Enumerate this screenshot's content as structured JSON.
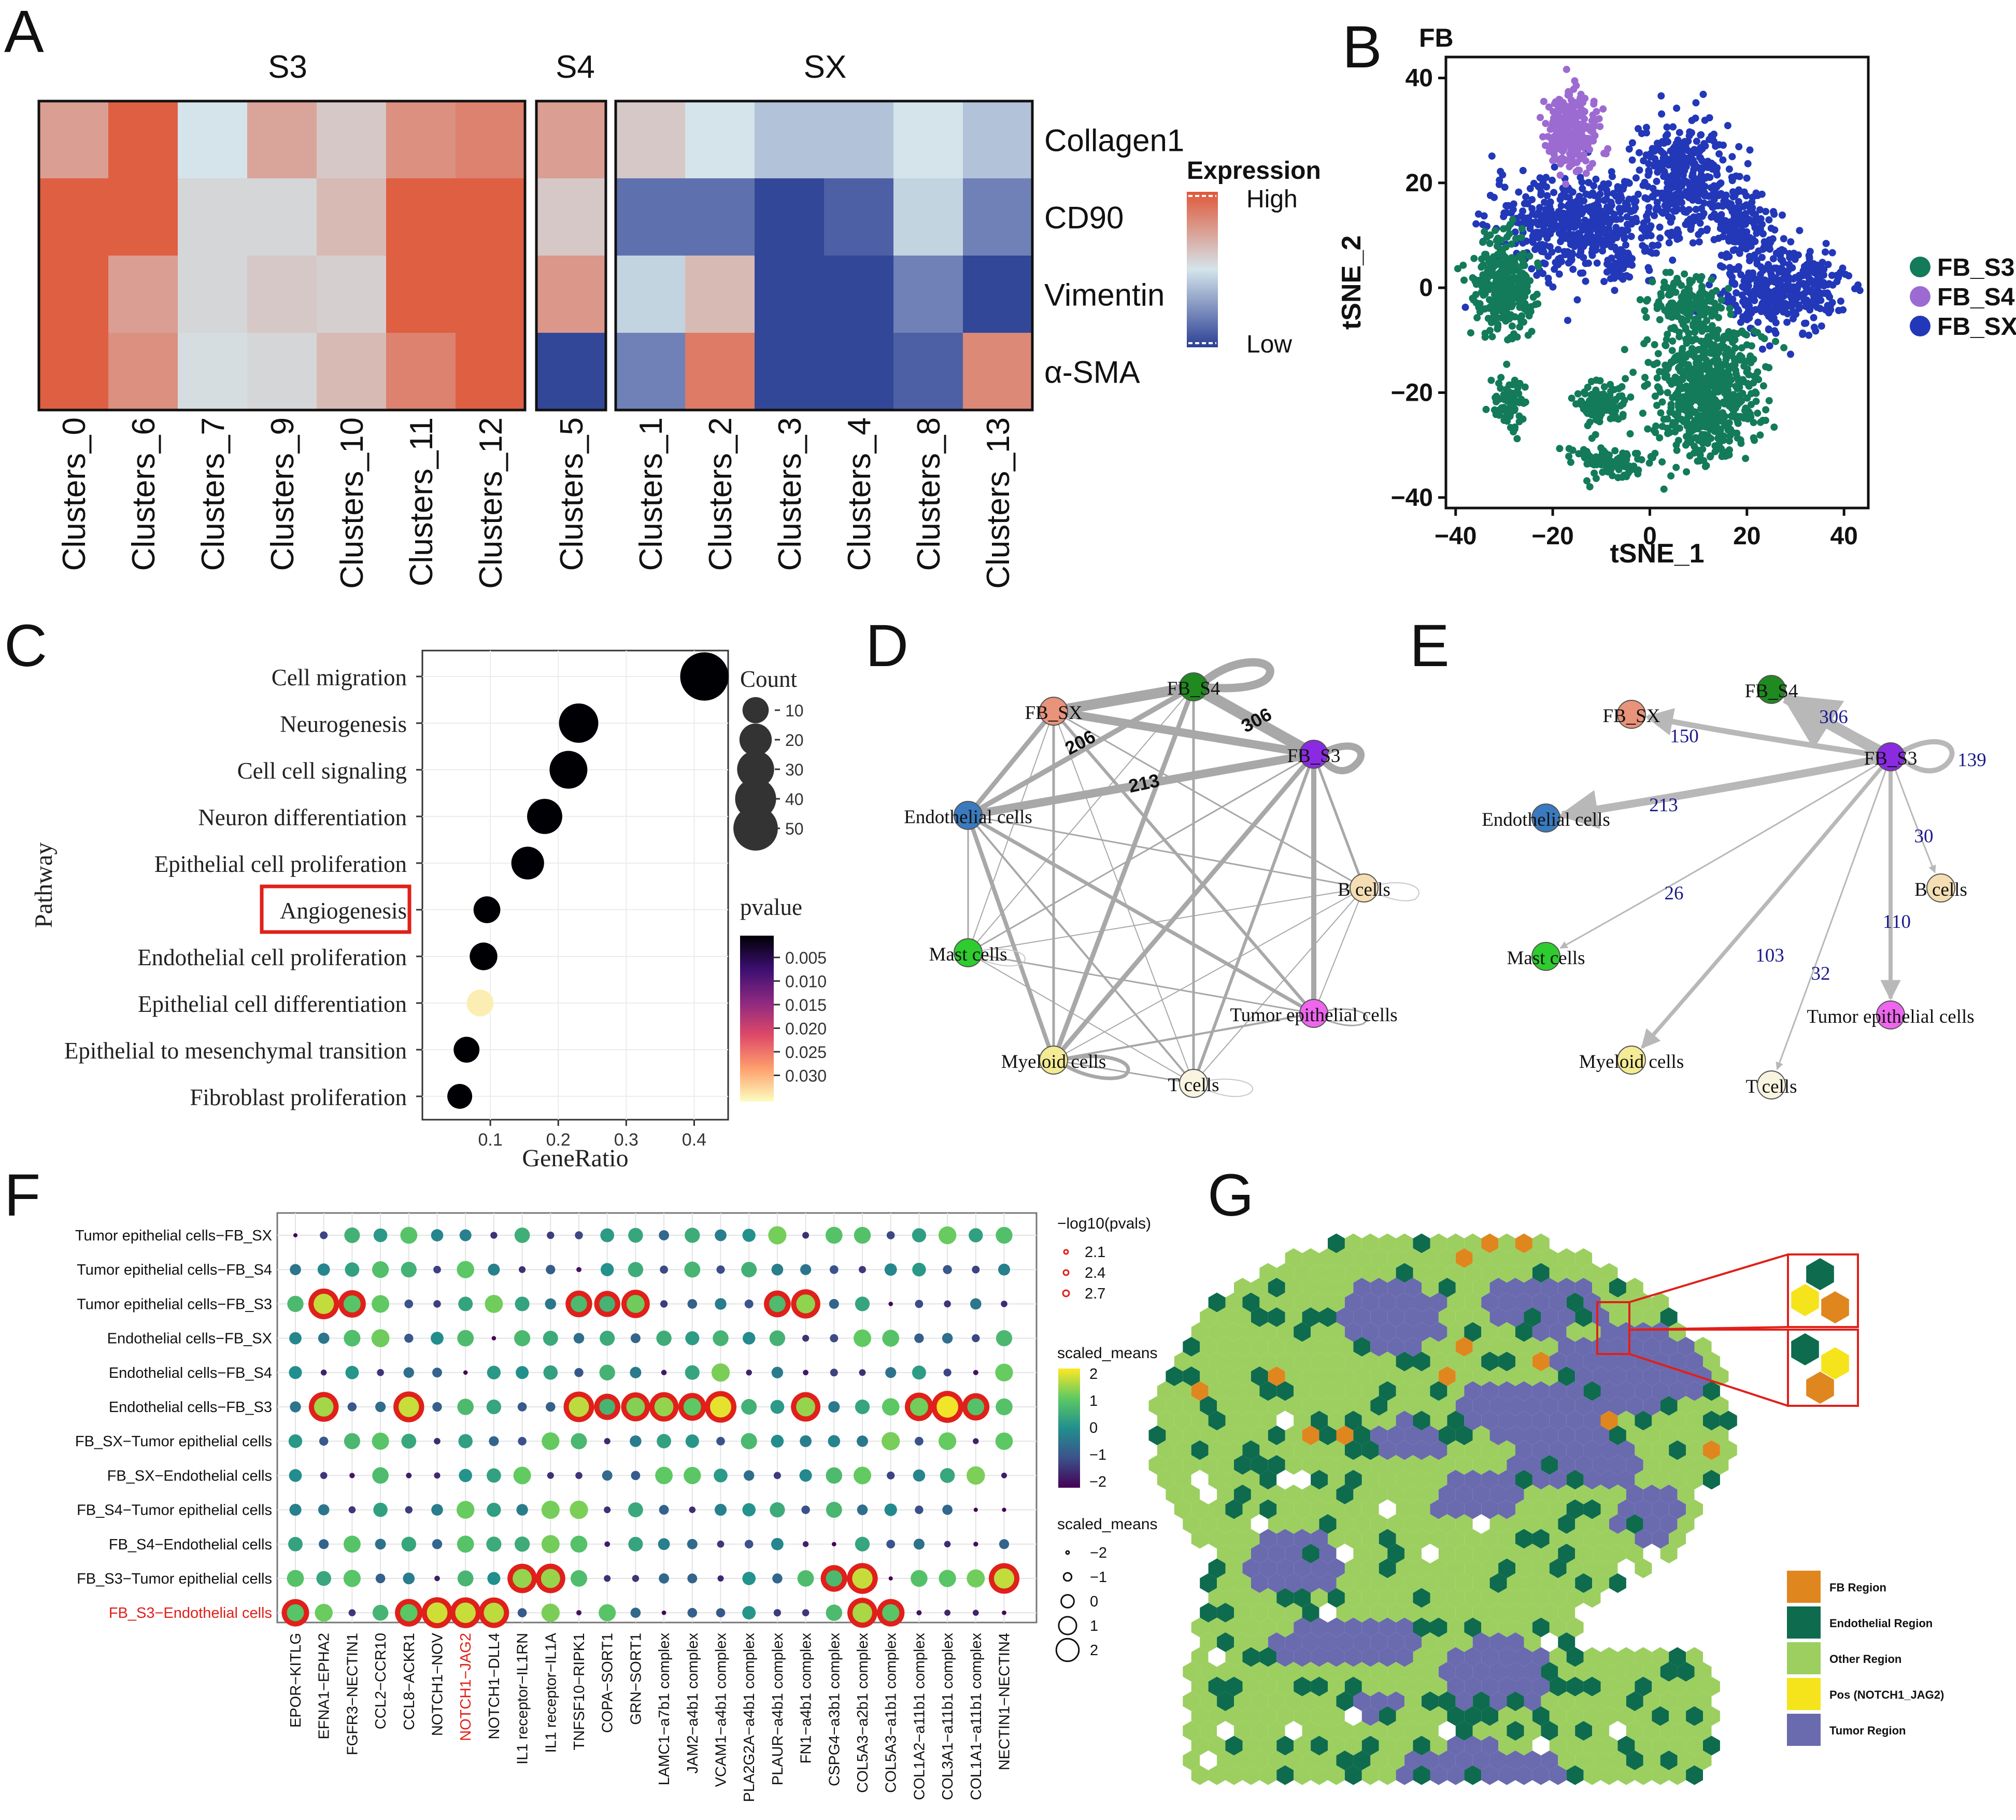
{
  "panels": {
    "A": "A",
    "B": "B",
    "C": "C",
    "D": "D",
    "E": "E",
    "F": "F",
    "G": "G"
  },
  "colors": {
    "high": "#e0583a",
    "mid": "#d4e4ea",
    "low": "#2b3f94",
    "fb_s3": "#137a5a",
    "fb_s4": "#9c6bd1",
    "fb_sx": "#2238b8"
  },
  "chart_data": [
    {
      "id": "A",
      "type": "heatmap",
      "groups": [
        {
          "name": "S3",
          "clusters": [
            "Clusters_0",
            "Clusters_6",
            "Clusters_7",
            "Clusters_9",
            "Clusters_10",
            "Clusters_11",
            "Clusters_12"
          ]
        },
        {
          "name": "S4",
          "clusters": [
            "Clusters_5"
          ]
        },
        {
          "name": "SX",
          "clusters": [
            "Clusters_1",
            "Clusters_2",
            "Clusters_3",
            "Clusters_4",
            "Clusters_8",
            "Clusters_13"
          ]
        }
      ],
      "rows": [
        "Collagen1",
        "CD90",
        "Vimentin",
        "α-SMA"
      ],
      "values": [
        [
          0.5,
          0.95,
          0.0,
          0.45,
          0.2,
          0.6,
          0.7,
          0.5,
          0.2,
          0.0,
          -0.2,
          -0.2,
          0.0,
          -0.2
        ],
        [
          0.95,
          0.95,
          0.1,
          0.1,
          0.3,
          0.95,
          0.95,
          0.2,
          -0.7,
          -0.7,
          -0.95,
          -0.8,
          -0.1,
          -0.6
        ],
        [
          0.95,
          0.5,
          0.1,
          0.2,
          0.15,
          0.95,
          0.95,
          0.55,
          -0.1,
          0.3,
          -0.95,
          -0.95,
          -0.6,
          -0.95
        ],
        [
          0.95,
          0.6,
          0.05,
          0.1,
          0.3,
          0.7,
          0.95,
          -0.95,
          -0.6,
          0.75,
          -0.95,
          -0.95,
          -0.8,
          0.65
        ]
      ],
      "legend": {
        "title": "Expression",
        "high": "High",
        "low": "Low"
      }
    },
    {
      "id": "B",
      "type": "scatter",
      "title": "FB",
      "xlabel": "tSNE_1",
      "ylabel": "tSNE_2",
      "xlim": [
        -42,
        45
      ],
      "ylim": [
        -42,
        44
      ],
      "xticks": [
        "−40",
        "−20",
        "0",
        "20",
        "40"
      ],
      "yticks": [
        "40",
        "20",
        "0",
        "−20",
        "−40"
      ],
      "legend": [
        "FB_S3",
        "FB_S4",
        "FB_SX"
      ],
      "clusters": [
        {
          "series": "FB_SX",
          "cx": -15,
          "cy": 12,
          "rx": 17,
          "ry": 9,
          "n": 520
        },
        {
          "series": "FB_SX",
          "cx": 7,
          "cy": 21,
          "rx": 10,
          "ry": 11,
          "n": 380
        },
        {
          "series": "FB_SX",
          "cx": 27,
          "cy": 0,
          "rx": 12,
          "ry": 8,
          "n": 420
        },
        {
          "series": "FB_SX",
          "cx": 19,
          "cy": 12,
          "rx": 7,
          "ry": 6,
          "n": 140
        },
        {
          "series": "FB_SX",
          "cx": -6,
          "cy": 4,
          "rx": 3,
          "ry": 3,
          "n": 40
        },
        {
          "series": "FB_S4",
          "cx": -16,
          "cy": 30,
          "rx": 5,
          "ry": 7,
          "n": 260
        },
        {
          "series": "FB_S3",
          "cx": -30,
          "cy": 0,
          "rx": 6,
          "ry": 9,
          "n": 320
        },
        {
          "series": "FB_S3",
          "cx": 11,
          "cy": -20,
          "rx": 11,
          "ry": 14,
          "n": 620
        },
        {
          "series": "FB_S3",
          "cx": 8,
          "cy": -3,
          "rx": 7,
          "ry": 5,
          "n": 150
        },
        {
          "series": "FB_S3",
          "cx": -29,
          "cy": -22,
          "rx": 3,
          "ry": 5,
          "n": 80
        },
        {
          "series": "FB_S3",
          "cx": -10,
          "cy": -22,
          "rx": 5,
          "ry": 4,
          "n": 110
        },
        {
          "series": "FB_S3",
          "cx": -9,
          "cy": -33,
          "rx": 8,
          "ry": 3,
          "n": 90
        }
      ]
    },
    {
      "id": "C",
      "type": "scatter",
      "xlabel": "GeneRatio",
      "ylabel": "Pathway",
      "xlim": [
        0.0,
        0.45
      ],
      "xticks": [
        0.1,
        0.2,
        0.3,
        0.4
      ],
      "pathways": [
        "Cell migration",
        "Neurogenesis",
        "Cell cell signaling",
        "Neuron differentiation",
        "Epithelial cell proliferation",
        "Angiogenesis",
        "Endothelial cell proliferation",
        "Epithelial cell differentiation",
        "Epithelial to mesenchymal transition",
        "Fibroblast proliferation"
      ],
      "generatio": [
        0.415,
        0.23,
        0.215,
        0.18,
        0.155,
        0.095,
        0.09,
        0.085,
        0.065,
        0.055
      ],
      "count": [
        50,
        28,
        25,
        20,
        16,
        8,
        9,
        8,
        7,
        6
      ],
      "pvalue": [
        0.001,
        0.001,
        0.001,
        0.001,
        0.001,
        0.002,
        0.001,
        0.033,
        0.001,
        0.001
      ],
      "highlight": "Angiogenesis",
      "count_legend": {
        "title": "Count",
        "values": [
          10,
          20,
          30,
          40,
          50
        ]
      },
      "pvalue_legend": {
        "title": "pvalue",
        "ticks": [
          "0.005",
          "0.010",
          "0.015",
          "0.020",
          "0.025",
          "0.030"
        ]
      }
    },
    {
      "id": "D",
      "type": "network",
      "nodes": [
        "FB_S4",
        "FB_SX",
        "FB_S3",
        "Endothelial cells",
        "B cells",
        "Mast cells",
        "Tumor epithelial cells",
        "Myeloid cells",
        "T cells"
      ],
      "edge_labels": [
        "306",
        "206",
        "213"
      ]
    },
    {
      "id": "E",
      "type": "network",
      "source": "FB_S3",
      "nodes": [
        "FB_S4",
        "FB_SX",
        "FB_S3",
        "Endothelial cells",
        "B cells",
        "Mast cells",
        "Tumor epithelial cells",
        "Myeloid cells",
        "T cells"
      ],
      "edges": [
        {
          "to": "FB_S4",
          "value": 306
        },
        {
          "to": "FB_SX",
          "value": 150
        },
        {
          "to": "FB_S3",
          "value": 139
        },
        {
          "to": "Endothelial cells",
          "value": 213
        },
        {
          "to": "B cells",
          "value": 30
        },
        {
          "to": "Mast cells",
          "value": 26
        },
        {
          "to": "Tumor epithelial cells",
          "value": 110
        },
        {
          "to": "Myeloid cells",
          "value": 103
        },
        {
          "to": "T cells",
          "value": 32
        }
      ]
    },
    {
      "id": "F",
      "type": "scatter",
      "rows": [
        "Tumor epithelial cells−FB_SX",
        "Tumor epithelial cells−FB_S4",
        "Tumor epithelial cells−FB_S3",
        "Endothelial cells−FB_SX",
        "Endothelial cells−FB_S4",
        "Endothelial cells−FB_S3",
        "FB_SX−Tumor epithelial cells",
        "FB_SX−Endothelial cells",
        "FB_S4−Tumor epithelial cells",
        "FB_S4−Endothelial cells",
        "FB_S3−Tumor epithelial cells",
        "FB_S3−Endothelial cells"
      ],
      "cols": [
        "EPOR−KITLG",
        "EFNA1−EPHA2",
        "FGFR3−NECTIN1",
        "CCL2−CCR10",
        "CCL8−ACKR1",
        "NOTCH1−NOV",
        "NOTCH1−JAG2",
        "NOTCH1−DLL4",
        "IL1 receptor−IL1RN",
        "IL1 receptor−IL1A",
        "TNFSF10−RIPK1",
        "COPA−SORT1",
        "GRN−SORT1",
        "LAMC1−a7b1 complex",
        "JAM2−a4b1 complex",
        "VCAM1−a4b1 complex",
        "PLA2G2A−a4b1 complex",
        "PLAUR−a4b1 complex",
        "FN1−a4b1 complex",
        "CSPG4−a3b1 complex",
        "COL5A3−a2b1 complex",
        "COL5A3−a1b1 complex",
        "COL1A2−a11b1 complex",
        "COL3A1−a11b1 complex",
        "COL1A1−a11b1 complex",
        "NECTIN1−NECTIN4"
      ],
      "highlight_row": "FB_S3−Endothelial cells",
      "highlight_col": "NOTCH1−JAG2",
      "significant": [
        [
          2,
          1
        ],
        [
          2,
          2
        ],
        [
          2,
          10
        ],
        [
          2,
          11
        ],
        [
          2,
          12
        ],
        [
          2,
          17
        ],
        [
          2,
          18
        ],
        [
          5,
          1
        ],
        [
          5,
          4
        ],
        [
          5,
          10
        ],
        [
          5,
          11
        ],
        [
          5,
          12
        ],
        [
          5,
          13
        ],
        [
          5,
          14
        ],
        [
          5,
          15
        ],
        [
          5,
          18
        ],
        [
          5,
          22
        ],
        [
          5,
          23
        ],
        [
          5,
          24
        ],
        [
          10,
          8
        ],
        [
          10,
          9
        ],
        [
          10,
          19
        ],
        [
          10,
          20
        ],
        [
          10,
          25
        ],
        [
          11,
          0
        ],
        [
          11,
          4
        ],
        [
          11,
          5
        ],
        [
          11,
          6
        ],
        [
          11,
          7
        ],
        [
          11,
          20
        ],
        [
          11,
          21
        ]
      ],
      "legend_pvals": {
        "title": "−log10(pvals)",
        "values": [
          "2.1",
          "2.4",
          "2.7"
        ]
      },
      "legend_color": {
        "title": "scaled_means",
        "ticks": [
          "2",
          "1",
          "0",
          "−1",
          "−2"
        ]
      },
      "legend_size": {
        "title": "scaled_means",
        "values": [
          "−2",
          "−1",
          "0",
          "1",
          "2"
        ]
      }
    },
    {
      "id": "G",
      "type": "spatial-map",
      "legend": [
        "FB Region",
        "Endothelial Region",
        "Other Region",
        "Pos (NOTCH1_JAG2)",
        "Tumor Region"
      ],
      "region_colors": [
        "#e0861e",
        "#0e6b4e",
        "#9ccf5f",
        "#f5e41b",
        "#6a6aaf"
      ]
    }
  ]
}
